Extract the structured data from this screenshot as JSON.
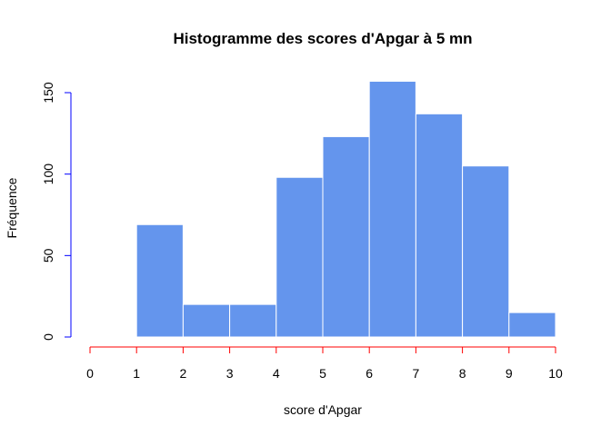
{
  "chart_data": {
    "type": "bar",
    "title": "Histogramme des scores d'Apgar à 5 mn",
    "xlabel": "score d'Apgar",
    "ylabel": "Fréquence",
    "bins": [
      {
        "x0": 1,
        "x1": 2,
        "count": 69
      },
      {
        "x0": 2,
        "x1": 3,
        "count": 20
      },
      {
        "x0": 3,
        "x1": 4,
        "count": 20
      },
      {
        "x0": 4,
        "x1": 5,
        "count": 98
      },
      {
        "x0": 5,
        "x1": 6,
        "count": 123
      },
      {
        "x0": 6,
        "x1": 7,
        "count": 157
      },
      {
        "x0": 7,
        "x1": 8,
        "count": 137
      },
      {
        "x0": 8,
        "x1": 9,
        "count": 105
      },
      {
        "x0": 9,
        "x1": 10,
        "count": 15
      }
    ],
    "xlim": [
      0,
      10
    ],
    "ylim": [
      0,
      150
    ],
    "x_ticks": [
      0,
      1,
      2,
      3,
      4,
      5,
      6,
      7,
      8,
      9,
      10
    ],
    "y_ticks": [
      0,
      50,
      100,
      150
    ],
    "colors": {
      "bar_fill": "#6495ED",
      "bar_border": "#FFFFFF",
      "x_axis": "#FF0000",
      "y_axis": "#0000FF"
    },
    "grid": false,
    "legend": "none"
  }
}
